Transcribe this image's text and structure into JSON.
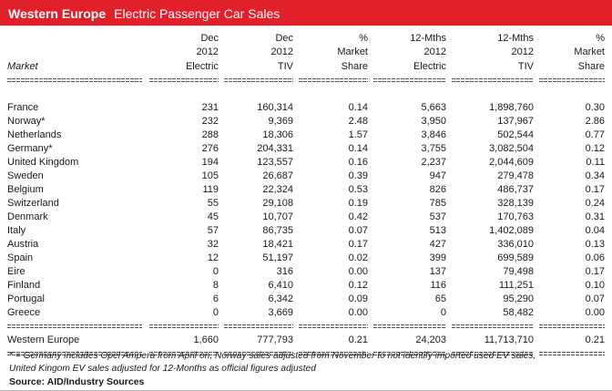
{
  "title": {
    "region": "Western Europe",
    "subject": "Electric Passenger Car Sales"
  },
  "columns": [
    {
      "lines": [
        "",
        "",
        "Market"
      ]
    },
    {
      "lines": [
        "Dec",
        "2012",
        "Electric"
      ]
    },
    {
      "lines": [
        "Dec",
        "2012",
        "TIV"
      ]
    },
    {
      "lines": [
        "%",
        "Market",
        "Share"
      ]
    },
    {
      "lines": [
        "12-Mths",
        "2012",
        "Electric"
      ]
    },
    {
      "lines": [
        "12-Mths",
        "2012",
        "TIV"
      ]
    },
    {
      "lines": [
        "%",
        "Market",
        "Share"
      ]
    }
  ],
  "rows": [
    [
      "France",
      "231",
      "160,314",
      "0.14",
      "5,663",
      "1,898,760",
      "0.30"
    ],
    [
      "Norway*",
      "232",
      "9,369",
      "2.48",
      "3,950",
      "137,967",
      "2.86"
    ],
    [
      "Netherlands",
      "288",
      "18,306",
      "1.57",
      "3,846",
      "502,544",
      "0.77"
    ],
    [
      "Germany*",
      "276",
      "204,331",
      "0.14",
      "3,755",
      "3,082,504",
      "0.12"
    ],
    [
      "United Kingdom",
      "194",
      "123,557",
      "0.16",
      "2,237",
      "2,044,609",
      "0.11"
    ],
    [
      "Sweden",
      "105",
      "26,687",
      "0.39",
      "947",
      "279,478",
      "0.34"
    ],
    [
      "Belgium",
      "119",
      "22,324",
      "0.53",
      "826",
      "486,737",
      "0.17"
    ],
    [
      "Switzerland",
      "55",
      "29,108",
      "0.19",
      "785",
      "328,139",
      "0.24"
    ],
    [
      "Denmark",
      "45",
      "10,707",
      "0.42",
      "537",
      "170,763",
      "0.31"
    ],
    [
      "Italy",
      "57",
      "86,735",
      "0.07",
      "513",
      "1,402,089",
      "0.04"
    ],
    [
      "Austria",
      "32",
      "18,421",
      "0.17",
      "427",
      "336,010",
      "0.13"
    ],
    [
      "Spain",
      "12",
      "51,197",
      "0.02",
      "399",
      "699,589",
      "0.06"
    ],
    [
      "Eire",
      "0",
      "316",
      "0.00",
      "137",
      "79,498",
      "0.17"
    ],
    [
      "Finland",
      "8",
      "6,410",
      "0.12",
      "116",
      "111,251",
      "0.10"
    ],
    [
      "Portugal",
      "6",
      "6,342",
      "0.09",
      "65",
      "95,290",
      "0.07"
    ],
    [
      "Greece",
      "0",
      "3,669",
      "0.00",
      "0",
      "58,482",
      "0.00"
    ]
  ],
  "total": [
    "Western Europe",
    "1,660",
    "777,793",
    "0.21",
    "24,203",
    "11,713,710",
    "0.21"
  ],
  "footnote": {
    "line1": "* = Germany includes Opel Ampera from April on, Norway sales adjusted from November to not identify imported used EV sales,",
    "line2": "United Kingom EV sales adjusted for 12-Months as official figures adjusted"
  },
  "source": "Source: AID/Industry Sources",
  "colors": {
    "title_bar": "#e0202a",
    "title_text": "#ffffff"
  }
}
